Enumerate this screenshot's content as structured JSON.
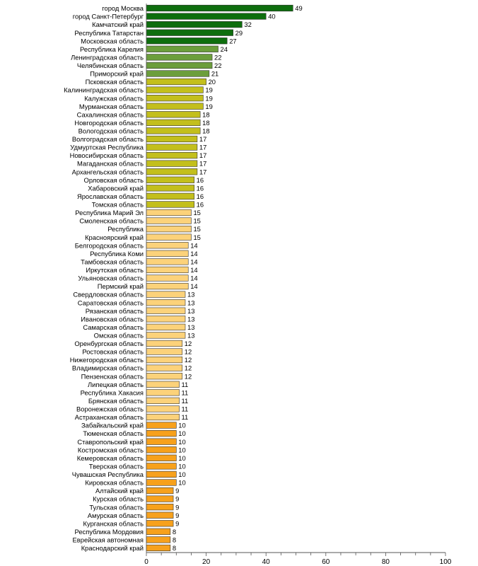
{
  "chart_data": {
    "type": "bar",
    "orientation": "horizontal",
    "title": "",
    "xlabel": "",
    "ylabel": "",
    "xlim": [
      0,
      100
    ],
    "x_ticks": [
      0,
      20,
      40,
      60,
      80,
      100
    ],
    "grid": false,
    "legend": "none",
    "categories": [
      "город Москва",
      "город Санкт-Петербург",
      "Камчатский край",
      "Республика Татарстан",
      "Московская область",
      "Республика Карелия",
      "Ленинградская область",
      "Челябинская область",
      "Приморский край",
      "Псковская область",
      "Калининградская область",
      "Калужская область",
      "Мурманская область",
      "Сахалинская область",
      "Новгородская область",
      "Вологодская область",
      "Волгоградская область",
      "Удмуртская Республика",
      "Новосибирская область",
      "Магаданская область",
      "Архангельская область",
      "Орловская область",
      "Хабаровский край",
      "Ярославская область",
      "Томская область",
      "Республика Марий Эл",
      "Смоленская область",
      "Республика",
      "Красноярский край",
      "Белгородская область",
      "Республика Коми",
      "Тамбовская область",
      "Иркутская область",
      "Ульяновская область",
      "Пермский край",
      "Свердловская область",
      "Саратовская область",
      "Рязанская область",
      "Ивановская область",
      "Самарская область",
      "Омская область",
      "Оренбургская область",
      "Ростовская область",
      "Нижегородская область",
      "Владимирская область",
      "Пензенская область",
      "Липецкая область",
      "Республика Хакасия",
      "Брянская область",
      "Воронежская область",
      "Астраханская область",
      "Забайкальский край",
      "Тюменская область",
      "Ставропольский край",
      "Костромская область",
      "Кемеровская область",
      "Тверская область",
      "Чувашская Республика",
      "Кировская область",
      "Алтайский край",
      "Курская область",
      "Тульская область",
      "Амурская область",
      "Курганская область",
      "Республика Мордовия",
      "Еврейская автономная",
      "Краснодарский край"
    ],
    "values": [
      49,
      40,
      32,
      29,
      27,
      24,
      22,
      22,
      21,
      20,
      19,
      19,
      19,
      18,
      18,
      18,
      17,
      17,
      17,
      17,
      17,
      16,
      16,
      16,
      16,
      15,
      15,
      15,
      15,
      14,
      14,
      14,
      14,
      14,
      14,
      13,
      13,
      13,
      13,
      13,
      13,
      12,
      12,
      12,
      12,
      12,
      11,
      11,
      11,
      11,
      11,
      10,
      10,
      10,
      10,
      10,
      10,
      10,
      10,
      9,
      9,
      9,
      9,
      9,
      8,
      8,
      8
    ],
    "value_labels": [
      "49",
      "40",
      "32",
      "29",
      "27",
      "24",
      "22",
      "22",
      "21",
      "20",
      "19",
      "19",
      "19",
      "18",
      "18",
      "18",
      "17",
      "17",
      "17",
      "17",
      "17",
      "16",
      "16",
      "16",
      "16",
      "15",
      "15",
      "15",
      "15",
      "14",
      "14",
      "14",
      "14",
      "14",
      "14",
      "13",
      "13",
      "13",
      "13",
      "13",
      "13",
      "12",
      "12",
      "12",
      "12",
      "12",
      "11",
      "11",
      "11",
      "11",
      "11",
      "10",
      "10",
      "10",
      "10",
      "10",
      "10",
      "10",
      "10",
      "9",
      "9",
      "9",
      "9",
      "9",
      "8",
      "8",
      "8"
    ],
    "tick_labels": [
      "0",
      "20",
      "40",
      "60",
      "80",
      "100"
    ],
    "color_groups": [
      {
        "from": 0,
        "to": 4,
        "color": "#0e6e0e"
      },
      {
        "from": 5,
        "to": 8,
        "color": "#6c9e3c"
      },
      {
        "from": 9,
        "to": 24,
        "color": "#c3bf1c"
      },
      {
        "from": 25,
        "to": 50,
        "color": "#fcd27a"
      },
      {
        "from": 51,
        "to": 66,
        "color": "#f7a11c"
      }
    ]
  }
}
